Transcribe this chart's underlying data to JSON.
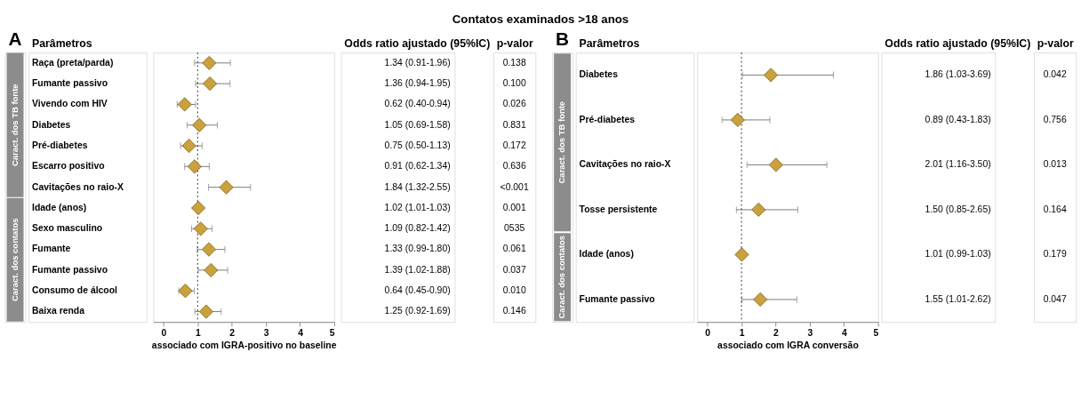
{
  "chart_data": [
    {
      "type": "scatter",
      "orientation": "horizontal",
      "title": "A",
      "ylabel": "Parâmetros",
      "xlabel": "associado com  IGRA-positivo no baseline",
      "marker": "diamond",
      "grid": false,
      "categories": [
        "Raça (preta/parda)",
        "Fumante passivo",
        "Vivendo com HIV",
        "Diabetes",
        "Pré-diabetes",
        "Escarro positivo",
        "Cavitações no raio-X",
        "Idade (anos)",
        "Sexo masculino",
        "Fumante",
        "Fumante passivo",
        "Consumo de álcool",
        "Baixa renda"
      ],
      "series": [
        {
          "color": "#c9a23e",
          "values": [
            1.34,
            1.36,
            0.62,
            1.05,
            0.75,
            0.91,
            1.84,
            1.02,
            1.09,
            1.33,
            1.39,
            0.64,
            1.25
          ],
          "errors": [
            [
              0.91,
              1.96
            ],
            [
              0.94,
              1.95
            ],
            [
              0.4,
              0.94
            ],
            [
              0.69,
              1.58
            ],
            [
              0.5,
              1.13
            ],
            [
              0.62,
              1.34
            ],
            [
              1.32,
              2.55
            ],
            [
              1.01,
              1.03
            ],
            [
              0.82,
              1.42
            ],
            [
              0.99,
              1.8
            ],
            [
              1.02,
              1.88
            ],
            [
              0.45,
              0.9
            ],
            [
              0.92,
              1.69
            ]
          ]
        }
      ],
      "value_labels": [
        "1.34 (0.91-1.96)",
        "1.36 (0.94-1.95)",
        "0.62 (0.40-0.94)",
        "1.05 (0.69-1.58)",
        "0.75 (0.50-1.13)",
        "0.91 (0.62-1.34)",
        "1.84 (1.32-2.55)",
        "1.02 (1.01-1.03)",
        "1.09 (0.82-1.42)",
        "1.33 (0.99-1.80)",
        "1.39 (1.02-1.88)",
        "0.64 (0.45-0.90)",
        "1.25 (0.92-1.69)"
      ],
      "xlim": [
        -0.3,
        5
      ],
      "xticks": [
        0,
        1,
        2,
        3,
        4,
        5
      ],
      "ref_lines": [
        {
          "axis": "x",
          "value": 1,
          "line_style": "dotted"
        }
      ],
      "annotations": [
        "0.138",
        "0.100",
        "0.026",
        "0.831",
        "0.172",
        "0.636",
        "<0.001",
        "0.001",
        "0535",
        "0.061",
        "0.037",
        "0.010",
        "0.146",
        "Odds ratio ajustado (95%IC)",
        "p-valor",
        "Caract. dos TB fonte",
        "Caract. dos contatos",
        "Contatos examinados >18 anos"
      ]
    },
    {
      "type": "scatter",
      "orientation": "horizontal",
      "title": "B",
      "ylabel": "Parâmetros",
      "xlabel": "associado com IGRA conversão",
      "marker": "diamond",
      "grid": false,
      "categories": [
        "Diabetes",
        "Pré-diabetes",
        "Cavitações no raio-X",
        "Tosse persistente",
        "Idade (anos)",
        "Fumante passivo"
      ],
      "series": [
        {
          "color": "#c9a23e",
          "values": [
            1.86,
            0.89,
            2.01,
            1.5,
            1.01,
            1.55
          ],
          "errors": [
            [
              1.03,
              3.69
            ],
            [
              0.43,
              1.83
            ],
            [
              1.16,
              3.5
            ],
            [
              0.85,
              2.65
            ],
            [
              0.99,
              1.03
            ],
            [
              1.01,
              2.62
            ]
          ]
        }
      ],
      "value_labels": [
        "1.86 (1.03-3.69)",
        "0.89 (0.43-1.83)",
        "2.01 (1.16-3.50)",
        "1.50 (0.85-2.65)",
        "1.01 (0.99-1.03)",
        "1.55 (1.01-2.62)"
      ],
      "xlim": [
        -0.3,
        5
      ],
      "xticks": [
        0,
        1,
        2,
        3,
        4,
        5
      ],
      "ref_lines": [
        {
          "axis": "x",
          "value": 1,
          "line_style": "dotted"
        }
      ],
      "annotations": [
        "0.042",
        "0.756",
        "0.013",
        "0.164",
        "0.179",
        "0.047",
        "Odds ratio ajustado (95%IC)",
        "p-valor",
        "Caract. dos TB fonte",
        "Caract. dos contatos"
      ]
    }
  ]
}
